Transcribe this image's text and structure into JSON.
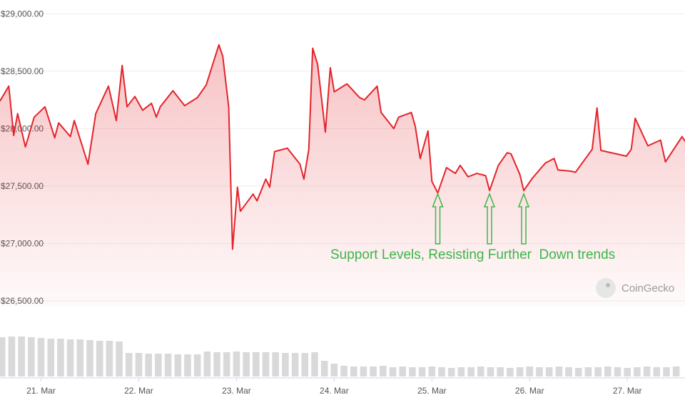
{
  "chart_data": [
    {
      "type": "area",
      "color": "#e3242b",
      "annotation": "Support Levels, Resisting Further  Down trends",
      "watermark": "CoinGecko",
      "x": [
        20.58,
        20.67,
        20.72,
        20.76,
        20.84,
        20.93,
        21.04,
        21.14,
        21.18,
        21.3,
        21.34,
        21.48,
        21.56,
        21.69,
        21.77,
        21.83,
        21.88,
        21.96,
        22.04,
        22.13,
        22.18,
        22.22,
        22.35,
        22.47,
        22.6,
        22.69,
        22.82,
        22.86,
        22.92,
        22.96,
        23.01,
        23.04,
        23.17,
        23.21,
        23.3,
        23.34,
        23.39,
        23.52,
        23.65,
        23.69,
        23.74,
        23.78,
        23.83,
        23.91,
        23.96,
        24.0,
        24.13,
        24.26,
        24.31,
        24.44,
        24.48,
        24.61,
        24.66,
        24.79,
        24.83,
        24.88,
        24.96,
        25.0,
        25.06,
        25.15,
        25.24,
        25.29,
        25.37,
        25.46,
        25.55,
        25.59,
        25.68,
        25.77,
        25.81,
        25.9,
        25.94,
        26.03,
        26.16,
        26.25,
        26.29,
        26.42,
        26.47,
        26.64,
        26.69,
        26.73,
        26.99,
        27.04,
        27.08,
        27.21,
        27.34,
        27.39,
        27.56,
        27.59
      ],
      "values": [
        28240,
        28370,
        27940,
        28130,
        27840,
        28100,
        28190,
        27920,
        28050,
        27930,
        28070,
        27690,
        28130,
        28370,
        28070,
        28550,
        28190,
        28280,
        28160,
        28220,
        28100,
        28190,
        28330,
        28200,
        28270,
        28380,
        28730,
        28630,
        28190,
        26950,
        27490,
        27280,
        27430,
        27370,
        27560,
        27490,
        27800,
        27830,
        27690,
        27560,
        27820,
        28700,
        28560,
        27970,
        28530,
        28320,
        28390,
        28270,
        28250,
        28370,
        28140,
        28000,
        28100,
        28140,
        28020,
        27740,
        27980,
        27540,
        27440,
        27660,
        27610,
        27680,
        27580,
        27610,
        27590,
        27460,
        27680,
        27790,
        27780,
        27600,
        27460,
        27570,
        27700,
        27740,
        27640,
        27630,
        27620,
        27820,
        28180,
        27810,
        27760,
        27820,
        28090,
        27850,
        27900,
        27710,
        27930,
        27890
      ],
      "xlim": [
        20.58,
        27.59
      ],
      "ylim": [
        26450,
        29120
      ],
      "yticks": [
        {
          "value": 29000,
          "label": "$29,000.00"
        },
        {
          "value": 28500,
          "label": "$28,500.00"
        },
        {
          "value": 28000,
          "label": "$28,000.00"
        },
        {
          "value": 27500,
          "label": "$27,500.00"
        },
        {
          "value": 27000,
          "label": "$27,000.00"
        },
        {
          "value": 26500,
          "label": "$26,500.00"
        }
      ],
      "grid": true
    },
    {
      "type": "bar",
      "color": "#d9d9d9",
      "x": [
        20.6,
        20.7,
        20.8,
        20.9,
        21.0,
        21.1,
        21.2,
        21.3,
        21.4,
        21.5,
        21.6,
        21.7,
        21.8,
        21.9,
        22.0,
        22.1,
        22.2,
        22.3,
        22.4,
        22.5,
        22.6,
        22.7,
        22.8,
        22.9,
        23.0,
        23.1,
        23.2,
        23.3,
        23.4,
        23.5,
        23.6,
        23.7,
        23.8,
        23.9,
        24.0,
        24.1,
        24.2,
        24.3,
        24.4,
        24.5,
        24.6,
        24.7,
        24.8,
        24.9,
        25.0,
        25.1,
        25.2,
        25.3,
        25.4,
        25.5,
        25.6,
        25.7,
        25.8,
        25.9,
        26.0,
        26.1,
        26.2,
        26.3,
        26.4,
        26.5,
        26.6,
        26.7,
        26.8,
        26.9,
        27.0,
        27.1,
        27.2,
        27.3,
        27.4,
        27.5
      ],
      "values": [
        55,
        56,
        56,
        55,
        54,
        53,
        53,
        52,
        52,
        51,
        50,
        50,
        49,
        33,
        33,
        32,
        32,
        32,
        31,
        31,
        31,
        35,
        34,
        34,
        35,
        34,
        34,
        34,
        34,
        33,
        33,
        33,
        34,
        22,
        18,
        15,
        14,
        14,
        14,
        15,
        13,
        14,
        13,
        13,
        14,
        13,
        12,
        13,
        13,
        14,
        13,
        13,
        12,
        13,
        14,
        13,
        13,
        14,
        13,
        12,
        13,
        13,
        14,
        13,
        12,
        13,
        14,
        13,
        13,
        14
      ],
      "xlim": [
        20.58,
        27.59
      ],
      "ylim": [
        0,
        60
      ],
      "xticks": [
        {
          "value": 21,
          "label": "21. Mar"
        },
        {
          "value": 22,
          "label": "22. Mar"
        },
        {
          "value": 23,
          "label": "23. Mar"
        },
        {
          "value": 24,
          "label": "24. Mar"
        },
        {
          "value": 25,
          "label": "25. Mar"
        },
        {
          "value": 26,
          "label": "26. Mar"
        },
        {
          "value": 27,
          "label": "27. Mar"
        }
      ]
    }
  ]
}
